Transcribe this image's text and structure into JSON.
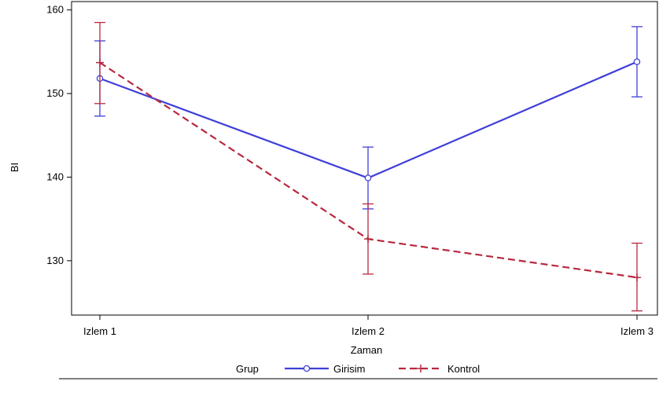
{
  "chart_data": {
    "type": "line",
    "xlabel": "Zaman",
    "ylabel": "BI",
    "categories": [
      "Izlem 1",
      "Izlem 2",
      "Izlem 3"
    ],
    "ylim": [
      123.5,
      161
    ],
    "yticks": [
      130,
      140,
      150,
      160
    ],
    "grid": false,
    "legend": {
      "title": "Grup",
      "position": "bottom"
    },
    "series": [
      {
        "name": "Girisim",
        "color": "#3f3fd9",
        "line_style": "solid",
        "marker": "circle",
        "values": [
          151.8,
          139.9,
          153.8
        ],
        "error_low": [
          147.3,
          136.2,
          149.6
        ],
        "error_high": [
          156.3,
          143.6,
          158.0
        ]
      },
      {
        "name": "Kontrol",
        "color": "#b8283e",
        "line_style": "dashed",
        "marker": "plus",
        "values": [
          153.7,
          132.6,
          128.0
        ],
        "error_low": [
          148.8,
          128.4,
          124.0
        ],
        "error_high": [
          158.5,
          136.8,
          132.1
        ]
      }
    ]
  }
}
